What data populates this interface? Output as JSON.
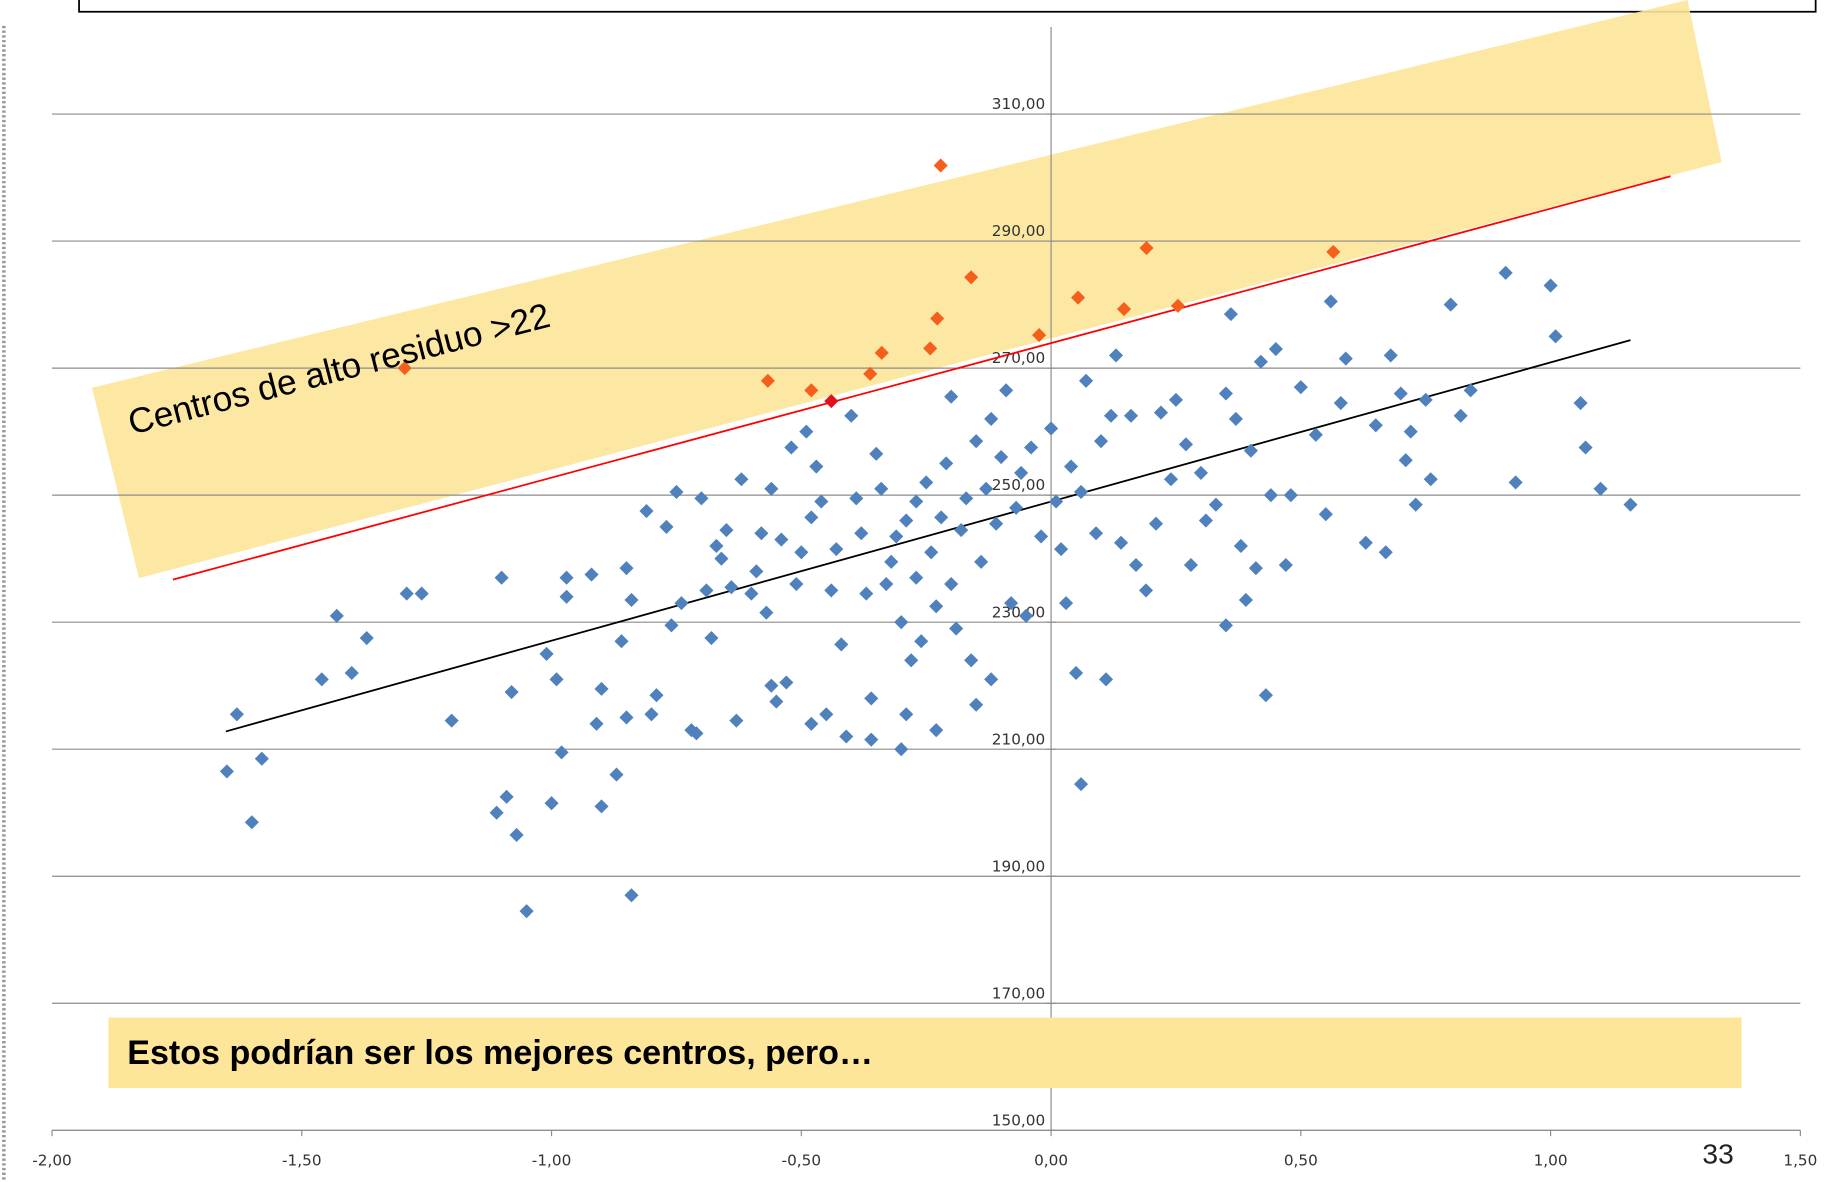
{
  "chart_data": {
    "type": "scatter",
    "xlim": [
      -2,
      1.5
    ],
    "ylim": [
      150,
      320
    ],
    "xticks": [
      {
        "value": -2,
        "label": "-2,00"
      },
      {
        "value": -1.5,
        "label": "-1,50"
      },
      {
        "value": -1,
        "label": "-1,00"
      },
      {
        "value": -0.5,
        "label": "-0,50"
      },
      {
        "value": 0,
        "label": "0,00"
      },
      {
        "value": 0.5,
        "label": "0,50"
      },
      {
        "value": 1,
        "label": "1,00"
      },
      {
        "value": 1.5,
        "label": "1,50"
      }
    ],
    "yticks": [
      {
        "value": 150,
        "label": "150,00"
      },
      {
        "value": 170,
        "label": "170,00"
      },
      {
        "value": 190,
        "label": "190,00"
      },
      {
        "value": 210,
        "label": "210,00"
      },
      {
        "value": 230,
        "label": "230,00"
      },
      {
        "value": 250,
        "label": "250,00"
      },
      {
        "value": 270,
        "label": "270,00"
      },
      {
        "value": 290,
        "label": "290,00"
      },
      {
        "value": 310,
        "label": "310,00"
      }
    ],
    "grid": true,
    "series": [
      {
        "color": "#4f81bd",
        "x": [
          -1.65,
          -1.63,
          -1.6,
          -1.58,
          -1.46,
          -1.43,
          -1.4,
          -1.37,
          -1.29,
          -1.26,
          -1.2,
          -1.11,
          -1.1,
          -1.09,
          -1.08,
          -1.07,
          -1.05,
          -1.01,
          -1.0,
          -0.99,
          -0.98,
          -0.97,
          -0.97,
          -0.92,
          -0.91,
          -0.9,
          -0.9,
          -0.87,
          -0.86,
          -0.85,
          -0.85,
          -0.84,
          -0.84,
          -0.81,
          -0.8,
          -0.79,
          -0.77,
          -0.76,
          -0.75,
          -0.74,
          -0.72,
          -0.71,
          -0.7,
          -0.69,
          -0.68,
          -0.67,
          -0.66,
          -0.65,
          -0.64,
          -0.63,
          -0.62,
          -0.6,
          -0.59,
          -0.58,
          -0.57,
          -0.56,
          -0.56,
          -0.55,
          -0.54,
          -0.53,
          -0.52,
          -0.51,
          -0.5,
          -0.49,
          -0.48,
          -0.48,
          -0.47,
          -0.46,
          -0.45,
          -0.44,
          -0.43,
          -0.42,
          -0.41,
          -0.4,
          -0.39,
          -0.38,
          -0.37,
          -0.36,
          -0.36,
          -0.35,
          -0.34,
          -0.33,
          -0.32,
          -0.31,
          -0.3,
          -0.3,
          -0.29,
          -0.29,
          -0.28,
          -0.27,
          -0.27,
          -0.26,
          -0.25,
          -0.24,
          -0.23,
          -0.23,
          -0.22,
          -0.21,
          -0.2,
          -0.2,
          -0.19,
          -0.18,
          -0.17,
          -0.16,
          -0.15,
          -0.15,
          -0.14,
          -0.13,
          -0.12,
          -0.12,
          -0.11,
          -0.1,
          -0.09,
          -0.08,
          -0.07,
          -0.06,
          -0.05,
          -0.04,
          -0.02,
          0.0,
          0.01,
          0.02,
          0.03,
          0.04,
          0.05,
          0.06,
          0.06,
          0.07,
          0.09,
          0.1,
          0.11,
          0.12,
          0.13,
          0.14,
          0.16,
          0.17,
          0.19,
          0.21,
          0.22,
          0.24,
          0.25,
          0.27,
          0.28,
          0.3,
          0.31,
          0.33,
          0.35,
          0.35,
          0.36,
          0.37,
          0.38,
          0.39,
          0.4,
          0.41,
          0.42,
          0.43,
          0.44,
          0.45,
          0.47,
          0.48,
          0.5,
          0.53,
          0.55,
          0.56,
          0.58,
          0.59,
          0.63,
          0.65,
          0.67,
          0.68,
          0.7,
          0.71,
          0.72,
          0.73,
          0.75,
          0.76,
          0.8,
          0.82,
          0.84,
          0.91,
          0.93,
          1.0,
          1.01,
          1.06,
          1.07,
          1.1,
          1.16
        ],
        "values": [
          206.5,
          215.5,
          198.5,
          208.5,
          221,
          231,
          222,
          227.5,
          234.5,
          234.5,
          214.5,
          200,
          237,
          202.5,
          219,
          196.5,
          184.5,
          225,
          201.5,
          221,
          209.5,
          237,
          234,
          237.5,
          214,
          201,
          219.5,
          206,
          227,
          238.5,
          215,
          233.5,
          187,
          247.5,
          215.5,
          218.5,
          245,
          229.5,
          250.5,
          233,
          213,
          212.5,
          249.5,
          235,
          227.5,
          242,
          240,
          244.5,
          235.5,
          214.5,
          252.5,
          234.5,
          238,
          244,
          231.5,
          220,
          251,
          217.5,
          243,
          220.5,
          257.5,
          236,
          241,
          260,
          246.5,
          214,
          254.5,
          249,
          215.5,
          235,
          241.5,
          226.5,
          212,
          262.5,
          249.5,
          244,
          234.5,
          211.5,
          218,
          256.5,
          251,
          236,
          239.5,
          243.5,
          230,
          210,
          215.5,
          246,
          224,
          249,
          237,
          227,
          252,
          241,
          232.5,
          213,
          246.5,
          255,
          265.5,
          236,
          229,
          244.5,
          249.5,
          224,
          258.5,
          217,
          239.5,
          251,
          262,
          221,
          245.5,
          256,
          266.5,
          233,
          248,
          253.5,
          231,
          257.5,
          243.5,
          260.5,
          249,
          241.5,
          233,
          254.5,
          222,
          250.5,
          204.5,
          268,
          244,
          258.5,
          221,
          262.5,
          272,
          242.5,
          262.5,
          239,
          235,
          245.5,
          263,
          252.5,
          265,
          258,
          239,
          253.5,
          246,
          248.5,
          229.5,
          266,
          278.5,
          262,
          242,
          233.5,
          257,
          238.5,
          271,
          218.5,
          250,
          273,
          239,
          250,
          267,
          259.5,
          247,
          280.5,
          264.5,
          271.5,
          242.5,
          261,
          241,
          272,
          266,
          255.5,
          260,
          248.5,
          265,
          252.5,
          280,
          262.5,
          266.5,
          285,
          252,
          283,
          275,
          264.5,
          257.5,
          251,
          248.5
        ]
      },
      {
        "color": "#f4601c",
        "x": [
          -1.294,
          -0.567,
          -0.48,
          -0.362,
          -0.339,
          -0.242,
          -0.228,
          -0.221,
          -0.16,
          -0.024,
          0.054,
          0.146,
          0.191,
          0.254,
          0.565
        ],
        "values": [
          270.0,
          268.0,
          266.5,
          269.1,
          272.4,
          273.1,
          277.8,
          301.9,
          284.3,
          275.2,
          281.1,
          279.3,
          288.9,
          279.8,
          288.3
        ]
      },
      {
        "color": "#e3101c",
        "x": [
          -0.44
        ],
        "values": [
          264.8
        ]
      }
    ],
    "trend_lines": [
      {
        "color": "#000000",
        "x": [
          -1.652,
          1.16
        ],
        "values": [
          212.8,
          274.4
        ]
      },
      {
        "color": "#ff0000",
        "x": [
          -1.758,
          1.24
        ],
        "values": [
          236.7,
          300.2
        ]
      }
    ],
    "annotations": [
      "Centros de alto residuo >22",
      "Estos podrían ser los mejores centros, pero…"
    ],
    "page_number": "33"
  }
}
